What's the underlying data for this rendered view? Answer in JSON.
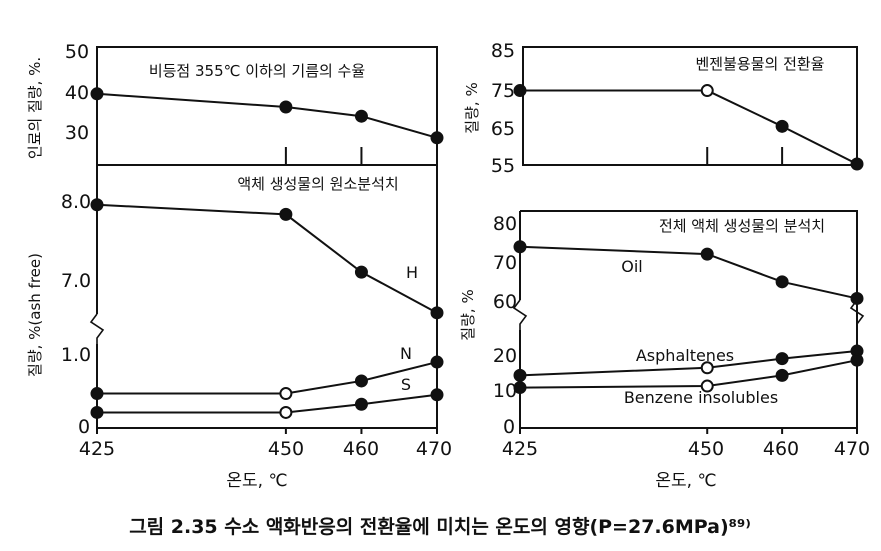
{
  "figure": {
    "caption": "그림 2.35  수소 액화반응의 전환율에 미치는 온도의 영향(P=27.6MPa)⁸⁹⁾"
  },
  "colors": {
    "ink": "#111111",
    "background": "#ffffff"
  },
  "chart_data": [
    {
      "id": "top-left",
      "type": "line",
      "title": "비등점 355℃ 이하의 기름의 수율",
      "ylabel": "인료의 질량, %.",
      "xlabel": "",
      "x": [
        425,
        450,
        460,
        470
      ],
      "xlim": [
        425,
        470
      ],
      "ylim": [
        25,
        50
      ],
      "yticks": [
        30,
        40,
        50
      ],
      "series": [
        {
          "points": [
            [
              425,
              39.8
            ],
            [
              450,
              36.5
            ],
            [
              460,
              34.2
            ],
            [
              470,
              28.8
            ]
          ]
        }
      ]
    },
    {
      "id": "top-right",
      "type": "line",
      "title": "벤젠불용물의 전환율",
      "ylabel": "질량, %",
      "xlabel": "",
      "x": [
        425,
        450,
        460,
        470
      ],
      "xlim": [
        425,
        470
      ],
      "ylim": [
        55,
        85
      ],
      "yticks": [
        55,
        65,
        75,
        85
      ],
      "series": [
        {
          "points": [
            [
              425,
              74.5
            ],
            [
              450,
              74.5
            ],
            [
              460,
              65
            ],
            [
              470,
              55
            ]
          ]
        }
      ]
    },
    {
      "id": "bottom-left",
      "type": "line",
      "title": "액체 생성물의 원소분석치",
      "ylabel": "질량, %(ash free)",
      "xlabel": "온도, ℃",
      "x": [
        425,
        450,
        460,
        470
      ],
      "xticks": [
        "425",
        "450",
        "460",
        "470"
      ],
      "xlim": [
        425,
        470
      ],
      "yticks": [
        "0",
        "1.0",
        "7.0",
        "8.0"
      ],
      "broken_axis": true,
      "series": [
        {
          "name": "H",
          "points": [
            [
              425,
              8.03
            ],
            [
              450,
              7.9
            ],
            [
              460,
              7.12
            ],
            [
              470,
              6.57
            ]
          ]
        },
        {
          "name": "N",
          "points": [
            [
              425,
              0.42
            ],
            [
              450,
              0.42
            ],
            [
              460,
              0.62
            ],
            [
              470,
              0.92
            ]
          ]
        },
        {
          "name": "S",
          "points": [
            [
              425,
              0.12
            ],
            [
              450,
              0.12
            ],
            [
              460,
              0.25
            ],
            [
              470,
              0.4
            ]
          ]
        }
      ]
    },
    {
      "id": "bottom-right",
      "type": "line",
      "title": "전체 액체 생성물의 분석치",
      "ylabel": "질량, %",
      "xlabel": "온도, ℃",
      "x": [
        425,
        450,
        460,
        470
      ],
      "xticks": [
        "425",
        "450",
        "460",
        "470"
      ],
      "xlim": [
        425,
        470
      ],
      "yticks": [
        "0",
        "10",
        "20",
        "60",
        "70",
        "80"
      ],
      "broken_axis": true,
      "series": [
        {
          "name": "Oil",
          "points": [
            [
              425,
              74.5
            ],
            [
              450,
              72.5
            ],
            [
              460,
              65
            ],
            [
              470,
              60.5
            ]
          ]
        },
        {
          "name": "Asphaltenes",
          "points": [
            [
              425,
              14
            ],
            [
              450,
              16.5
            ],
            [
              460,
              19.5
            ],
            [
              470,
              22
            ]
          ]
        },
        {
          "name": "Benzene  insolubles",
          "points": [
            [
              425,
              10
            ],
            [
              450,
              10.5
            ],
            [
              460,
              14
            ],
            [
              470,
              19
            ]
          ]
        }
      ]
    }
  ]
}
